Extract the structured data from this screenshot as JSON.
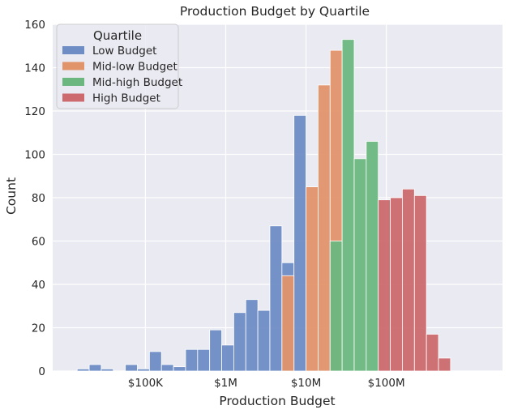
{
  "chart_data": {
    "type": "histogram",
    "title": "Production Budget by Quartile",
    "xlabel": "Production Budget",
    "ylabel": "Count",
    "x_scale": "log",
    "xlim": [
      7000,
      2800000000
    ],
    "ylim": [
      0,
      160
    ],
    "y_ticks": [
      0,
      20,
      40,
      60,
      80,
      100,
      120,
      140,
      160
    ],
    "x_ticks": [
      {
        "value": 100000,
        "label": "$100K"
      },
      {
        "value": 1000000,
        "label": "$1M"
      },
      {
        "value": 10000000,
        "label": "$10M"
      },
      {
        "value": 100000000,
        "label": "$100M"
      }
    ],
    "grid": true,
    "legend": {
      "title": "Quartile",
      "placement": "top-left"
    },
    "bin_edges": [
      10000,
      14125,
      19953,
      28184,
      39811,
      56234,
      79433,
      112202,
      158489,
      223872,
      316228,
      446684,
      630957,
      891251,
      1258925,
      1778279,
      2511886,
      3548134,
      5011872,
      7079458,
      10000000,
      14125375,
      19952623,
      28183829,
      39810717,
      56234133,
      79432823,
      112201845,
      158489319,
      223872114,
      316227766,
      446683592,
      630957344,
      891250938,
      1258925412,
      1778279410
    ],
    "series": [
      {
        "name": "Low Budget",
        "color": "#6f8dc5",
        "values": [
          0,
          1,
          3,
          1,
          0,
          3,
          1,
          9,
          3,
          2,
          10,
          10,
          19,
          12,
          27,
          33,
          28,
          67,
          50,
          118,
          0,
          0,
          0,
          0,
          0,
          0,
          0,
          0,
          0,
          0,
          0,
          0,
          0,
          0,
          0
        ]
      },
      {
        "name": "Mid-low Budget",
        "color": "#e1936a",
        "values": [
          0,
          0,
          0,
          0,
          0,
          0,
          0,
          0,
          0,
          0,
          0,
          0,
          0,
          0,
          0,
          0,
          0,
          0,
          44,
          0,
          85,
          132,
          148,
          0,
          0,
          0,
          0,
          0,
          0,
          0,
          0,
          0,
          0,
          0,
          0
        ]
      },
      {
        "name": "Mid-high Budget",
        "color": "#6cb77f",
        "values": [
          0,
          0,
          0,
          0,
          0,
          0,
          0,
          0,
          0,
          0,
          0,
          0,
          0,
          0,
          0,
          0,
          0,
          0,
          0,
          0,
          0,
          0,
          60,
          153,
          98,
          106,
          0,
          0,
          0,
          0,
          0,
          0,
          0,
          0,
          0
        ]
      },
      {
        "name": "High Budget",
        "color": "#cc6a6e",
        "values": [
          0,
          0,
          0,
          0,
          0,
          0,
          0,
          0,
          0,
          0,
          0,
          0,
          0,
          0,
          0,
          0,
          0,
          0,
          0,
          0,
          0,
          0,
          0,
          0,
          0,
          0,
          79,
          80,
          84,
          81,
          17,
          6,
          0,
          0,
          0
        ]
      }
    ]
  }
}
